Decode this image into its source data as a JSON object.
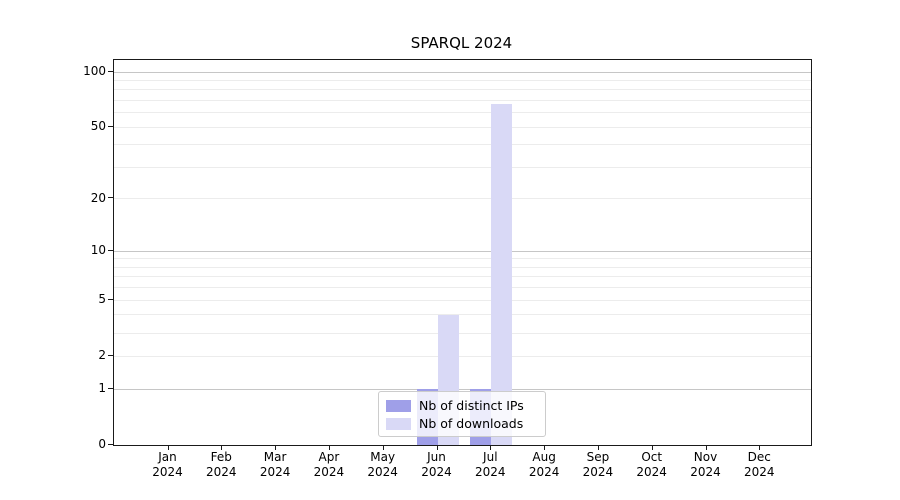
{
  "chart_data": {
    "type": "bar",
    "title": "SPARQL 2024",
    "categories": [
      "Jan",
      "Feb",
      "Mar",
      "Apr",
      "May",
      "Jun",
      "Jul",
      "Aug",
      "Sep",
      "Oct",
      "Nov",
      "Dec"
    ],
    "x_tick_second_line": "2024",
    "series": [
      {
        "name": "Nb of distinct IPs",
        "color": "#9f9fe8",
        "values": [
          0,
          0,
          0,
          0,
          0,
          1,
          1,
          0,
          0,
          0,
          0,
          0
        ]
      },
      {
        "name": "Nb of downloads",
        "color": "#d9d9f6",
        "values": [
          0,
          0,
          0,
          0,
          0,
          4,
          67,
          0,
          0,
          0,
          0,
          0
        ]
      }
    ],
    "xlabel": "",
    "ylabel": "",
    "y_axis": {
      "scale": "log1p",
      "ylim": [
        0,
        116
      ],
      "ticks": [
        {
          "value": 100,
          "label": "100"
        },
        {
          "value": 50,
          "label": "50"
        },
        {
          "value": 20,
          "label": "20"
        },
        {
          "value": 10,
          "label": "10"
        },
        {
          "value": 5,
          "label": "5"
        },
        {
          "value": 2,
          "label": "2"
        },
        {
          "value": 1,
          "label": "1"
        },
        {
          "value": 0,
          "label": "0"
        }
      ],
      "major_gridlines": [
        1,
        10,
        100
      ],
      "minor_gridlines": [
        2,
        3,
        4,
        5,
        6,
        7,
        8,
        9,
        20,
        30,
        40,
        50,
        60,
        70,
        80,
        90
      ]
    },
    "grid": true,
    "legend_position": "bottom-center",
    "colors": {
      "background": "#ffffff",
      "spine": "#1a1a1a",
      "grid_major": "#c6c6c6",
      "grid_minor": "#ececec",
      "text": "#000000"
    }
  }
}
